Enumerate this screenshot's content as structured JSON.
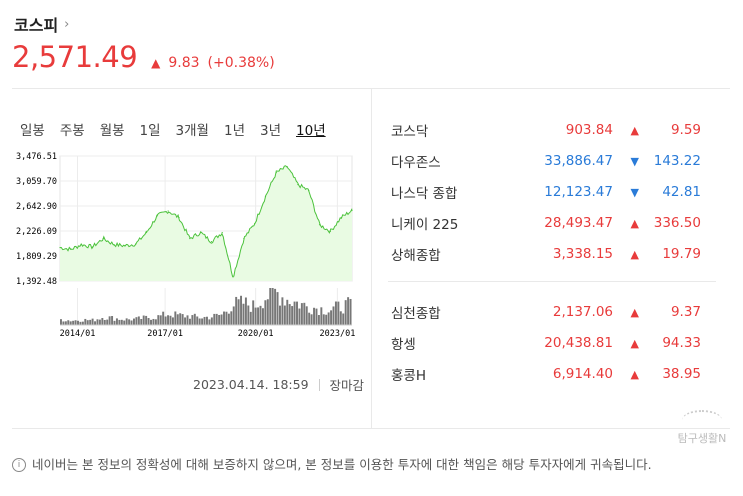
{
  "header": {
    "title": "코스피",
    "price": "2,571.49",
    "change": "9.83",
    "change_pct": "(+0.38%)"
  },
  "tabs": [
    {
      "label": "일봉",
      "active": false
    },
    {
      "label": "주봉",
      "active": false
    },
    {
      "label": "월봉",
      "active": false
    },
    {
      "label": "1일",
      "active": false
    },
    {
      "label": "3개월",
      "active": false
    },
    {
      "label": "1년",
      "active": false
    },
    {
      "label": "3년",
      "active": false
    },
    {
      "label": "10년",
      "active": true
    }
  ],
  "chart_data": {
    "type": "area",
    "title": "",
    "xlabel": "",
    "ylabel": "",
    "y_ticks": [
      "3,476.51",
      "3,059.70",
      "2,642.90",
      "2,226.09",
      "1,809.29",
      "1,392.48"
    ],
    "x_ticks": [
      "2014/01",
      "2017/01",
      "2020/01",
      "2023/01"
    ],
    "ylim": [
      1392.48,
      3476.51
    ],
    "x": [
      "2013/04",
      "2013/10",
      "2014/04",
      "2014/10",
      "2015/04",
      "2015/10",
      "2016/04",
      "2016/10",
      "2017/04",
      "2017/10",
      "2018/01",
      "2018/04",
      "2018/10",
      "2019/04",
      "2019/10",
      "2020/01",
      "2020/03",
      "2020/06",
      "2020/09",
      "2020/12",
      "2021/01",
      "2021/06",
      "2021/10",
      "2022/01",
      "2022/06",
      "2022/10",
      "2023/01",
      "2023/04"
    ],
    "values": [
      1950,
      1920,
      2000,
      1960,
      2100,
      2000,
      1980,
      2010,
      2200,
      2480,
      2560,
      2450,
      2100,
      2200,
      2050,
      2200,
      1460,
      2100,
      2350,
      2800,
      3200,
      3300,
      3000,
      2900,
      2330,
      2220,
      2450,
      2570
    ],
    "volume": [
      0.15,
      0.12,
      0.14,
      0.13,
      0.22,
      0.18,
      0.15,
      0.16,
      0.2,
      0.22,
      0.3,
      0.26,
      0.24,
      0.2,
      0.22,
      0.28,
      0.55,
      0.6,
      0.5,
      0.75,
      0.9,
      0.7,
      0.6,
      0.5,
      0.45,
      0.4,
      0.5,
      0.55
    ],
    "colors": {
      "line": "#4cc23c",
      "fill": "#e9fbe3",
      "volume": "#777777"
    }
  },
  "timestamp": "2023.04.14. 18:59",
  "market_status": "장마감",
  "indices_group1": [
    {
      "name": "코스닥",
      "value": "903.84",
      "change": "9.59",
      "dir": "up"
    },
    {
      "name": "다우존스",
      "value": "33,886.47",
      "change": "143.22",
      "dir": "down"
    },
    {
      "name": "나스닥 종합",
      "value": "12,123.47",
      "change": "42.81",
      "dir": "down"
    },
    {
      "name": "니케이 225",
      "value": "28,493.47",
      "change": "336.50",
      "dir": "up"
    },
    {
      "name": "상해종합",
      "value": "3,338.15",
      "change": "19.79",
      "dir": "up"
    }
  ],
  "indices_group2": [
    {
      "name": "심천종합",
      "value": "2,137.06",
      "change": "9.37",
      "dir": "up"
    },
    {
      "name": "항셍",
      "value": "20,438.81",
      "change": "94.33",
      "dir": "up"
    },
    {
      "name": "홍콩H",
      "value": "6,914.40",
      "change": "38.95",
      "dir": "up"
    }
  ],
  "notice": "네이버는 본 정보의 정확성에 대해 보증하지 않으며, 본 정보를 이용한 투자에 대한 책임은 해당 투자자에게 귀속됩니다.",
  "watermark": "탐구생활N",
  "icons": {
    "chevron": "chevron-right-icon",
    "up": "triangle-up-icon",
    "down": "triangle-down-icon",
    "info": "info-icon"
  }
}
